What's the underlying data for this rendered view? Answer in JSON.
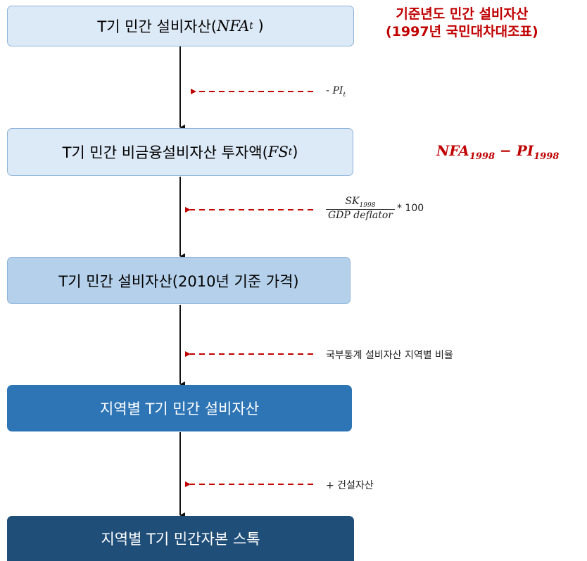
{
  "annotation": {
    "lines": [
      "기준년도 민간 설비자산",
      "(1997년 국민대차대조표)"
    ]
  },
  "formula": {
    "a": "NFA",
    "a_sub": "1998",
    "op": "−",
    "b": "PI",
    "b_sub": "1998"
  },
  "nodes": [
    {
      "label": "T기 민간 설비자산(",
      "math": "NFA",
      "sub": "t",
      "tail": " )"
    },
    {
      "label": "T기 민간 비금융설비자산 투자액(",
      "math": "FS",
      "sub": "t",
      "tail": ")"
    },
    {
      "label": "T기 민간 설비자산(2010년 기준 가격)"
    },
    {
      "label": "지역별 T기 민간 설비자산"
    },
    {
      "label": "지역별 T기 민간자본 스톡"
    }
  ],
  "edges": [
    {
      "sign": "-",
      "math": "PI",
      "sub": "t"
    },
    {
      "numerator": "SK",
      "numerator_sub": "1998",
      "denominator": "GDP deflator",
      "factor": "* 100"
    },
    {
      "label": "국부통계 설비자산 지역별 비율"
    },
    {
      "label": "+ 건설자산"
    }
  ]
}
